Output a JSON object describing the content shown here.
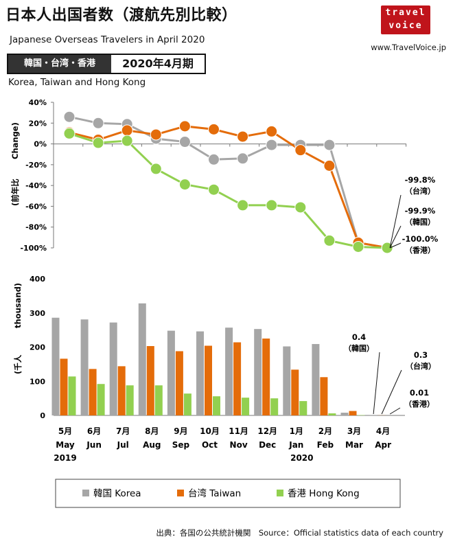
{
  "header": {
    "title": "日本人出国者数（渡航先別比較）",
    "subtitle": "Japanese Overseas Travelers in April 2020",
    "site_url": "www.TravelVoice.jp",
    "logo_line1": "travel",
    "logo_line2": "voice",
    "tag_left": "韓国・台湾・香港",
    "tag_right": "2020年4月期",
    "countries_en": "Korea, Taiwan and Hong Kong"
  },
  "footer": {
    "source": "出典：各国の公共統計機関　Source：Official statistics data of each country"
  },
  "colors": {
    "korea": "#a6a6a6",
    "taiwan": "#e46c0a",
    "hongkong": "#92d050"
  },
  "chart_data": [
    {
      "type": "line",
      "ylabel_jp": "(前年比",
      "ylabel_en": "Change)",
      "ylim": [
        -100,
        40
      ],
      "yticks": [
        "40%",
        "20%",
        "0%",
        "-20%",
        "-40%",
        "-60%",
        "-80%",
        "-100%"
      ],
      "series": [
        {
          "name": "韓国 Korea",
          "key": "korea",
          "values": [
            26,
            20,
            19,
            5,
            2,
            -15,
            -14,
            -1,
            -1,
            -1,
            -95,
            -99.9
          ]
        },
        {
          "name": "台湾 Taiwan",
          "key": "taiwan",
          "values": [
            11,
            4,
            13,
            9,
            17,
            14,
            7,
            12,
            -6,
            -21,
            -95,
            -99.8
          ]
        },
        {
          "name": "香港 Hong Kong",
          "key": "hongkong",
          "values": [
            10,
            1,
            3,
            -24,
            -39,
            -44,
            -59,
            -59,
            -61,
            -93,
            -99,
            -100
          ]
        }
      ],
      "annotations": [
        {
          "value": "-99.8%",
          "label": "（台湾）"
        },
        {
          "value": "-99.9%",
          "label": "（韓国）"
        },
        {
          "value": "-100.0%",
          "label": "（香港）"
        }
      ]
    },
    {
      "type": "bar",
      "ylabel_jp": "(千人",
      "ylabel_en": "thousand)",
      "ylim": [
        0,
        400
      ],
      "yticks": [
        "400",
        "300",
        "200",
        "100",
        "0"
      ],
      "categories_jp": [
        "5月",
        "6月",
        "7月",
        "8月",
        "9月",
        "10月",
        "11月",
        "12月",
        "1月",
        "2月",
        "3月",
        "4月"
      ],
      "categories_en": [
        "May",
        "Jun",
        "Jul",
        "Aug",
        "Sep",
        "Oct",
        "Nov",
        "Dec",
        "Jan",
        "Feb",
        "Mar",
        "Apr"
      ],
      "year_labels": [
        "2019",
        "2020"
      ],
      "series": [
        {
          "name": "韓国 Korea",
          "key": "korea",
          "values": [
            286,
            281,
            272,
            328,
            248,
            246,
            257,
            253,
            202,
            209,
            8,
            0.4
          ]
        },
        {
          "name": "台湾 Taiwan",
          "key": "taiwan",
          "values": [
            166,
            136,
            144,
            203,
            188,
            204,
            214,
            225,
            134,
            112,
            13,
            0.3
          ]
        },
        {
          "name": "香港 Hong Kong",
          "key": "hongkong",
          "values": [
            114,
            92,
            88,
            88,
            64,
            56,
            52,
            50,
            42,
            6,
            1,
            0.01
          ]
        }
      ],
      "annotations": [
        {
          "value": "0.4",
          "label": "（韓国）"
        },
        {
          "value": "0.3",
          "label": "（台湾）"
        },
        {
          "value": "0.01",
          "label": "（香港）"
        }
      ],
      "legend": [
        "韓国 Korea",
        "台湾 Taiwan",
        "香港 Hong Kong"
      ],
      "legend_position": "bottom"
    }
  ]
}
